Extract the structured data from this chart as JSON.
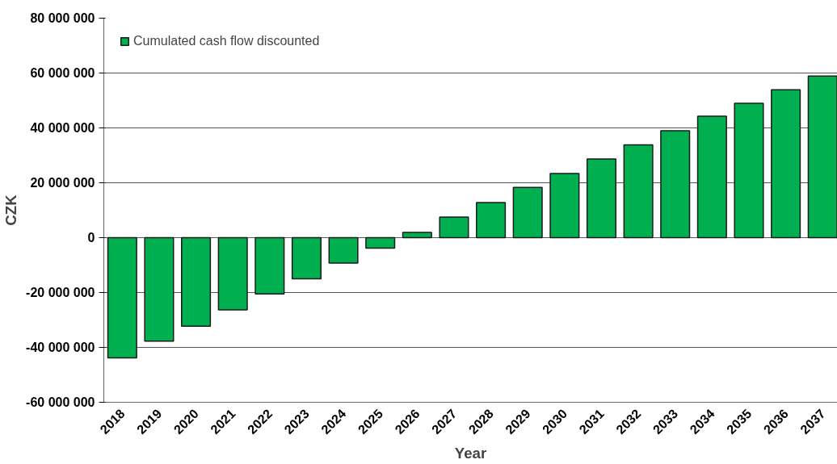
{
  "chart_data": {
    "type": "bar",
    "xlabel": "Year",
    "ylabel": "CZK",
    "categories": [
      "2018",
      "2019",
      "2020",
      "2021",
      "2022",
      "2023",
      "2024",
      "2025",
      "2026",
      "2027",
      "2028",
      "2029",
      "2030",
      "2031",
      "2032",
      "2033",
      "2034",
      "2035",
      "2036",
      "2037"
    ],
    "series": [
      {
        "name": "Cumulated cash flow discounted",
        "color": "#00b050",
        "values": [
          -43800000.0,
          -37700000.0,
          -32300000.0,
          -26300000.0,
          -20500000.0,
          -15000000.0,
          -9300000.0,
          -3800000.0,
          1900000.0,
          7500000.0,
          12800000.0,
          18300000.0,
          23400000.0,
          28700000.0,
          33800000.0,
          39000000.0,
          44300000.0,
          49000000.0,
          53900000.0,
          58900000.0
        ]
      }
    ],
    "ylim": [
      -60000000,
      80000000
    ],
    "yticks": [
      {
        "value": -60000000,
        "label": "-60 000 000"
      },
      {
        "value": -40000000,
        "label": "-40 000 000"
      },
      {
        "value": -20000000,
        "label": "-20 000 000"
      },
      {
        "value": 0,
        "label": "0"
      },
      {
        "value": 20000000,
        "label": "20 000 000"
      },
      {
        "value": 40000000,
        "label": "40 000 000"
      },
      {
        "value": 60000000,
        "label": "60 000 000"
      },
      {
        "value": 80000000,
        "label": "80 000 000"
      }
    ],
    "grid": "y",
    "legend": "top left"
  }
}
